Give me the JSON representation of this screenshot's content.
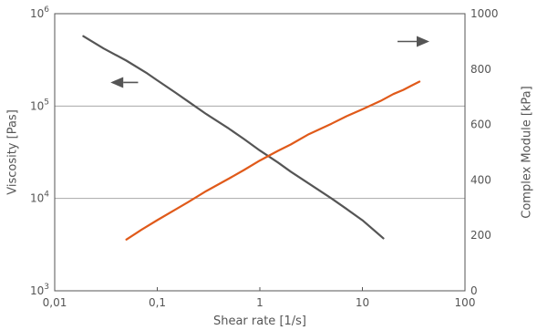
{
  "chart_data": {
    "type": "line",
    "title": "",
    "xlabel": "Shear rate [1/s]",
    "ylabel_left": "Viscosity [Pas]",
    "ylabel_right": "Complex Module [kPa]",
    "x_scale": "log",
    "y_left_scale": "log",
    "y_right_scale": "linear",
    "xlim": [
      0.01,
      100
    ],
    "ylim_left": [
      1000,
      1000000
    ],
    "ylim_right": [
      0,
      1000
    ],
    "x_ticks": [
      {
        "value": 0.01,
        "label": "0,01"
      },
      {
        "value": 0.1,
        "label": "0,1"
      },
      {
        "value": 1,
        "label": "1"
      },
      {
        "value": 10,
        "label": "10"
      },
      {
        "value": 100,
        "label": "100"
      }
    ],
    "y_left_ticks": [
      {
        "value": 1000,
        "base": "10",
        "exp": "3"
      },
      {
        "value": 10000,
        "base": "10",
        "exp": "4"
      },
      {
        "value": 100000,
        "base": "10",
        "exp": "5"
      },
      {
        "value": 1000000,
        "base": "10",
        "exp": "6"
      }
    ],
    "y_right_ticks": [
      {
        "value": 0,
        "label": "0"
      },
      {
        "value": 200,
        "label": "200"
      },
      {
        "value": 400,
        "label": "400"
      },
      {
        "value": 600,
        "label": "600"
      },
      {
        "value": 800,
        "label": "800"
      },
      {
        "value": 1000,
        "label": "1000"
      }
    ],
    "grid": "horizontal",
    "series": [
      {
        "axis": "left",
        "color": "#555555",
        "points": [
          [
            0.019,
            570000
          ],
          [
            0.03,
            420000
          ],
          [
            0.05,
            310000
          ],
          [
            0.08,
            225000
          ],
          [
            0.1,
            190000
          ],
          [
            0.15,
            140000
          ],
          [
            0.2,
            112000
          ],
          [
            0.3,
            82000
          ],
          [
            0.5,
            57000
          ],
          [
            0.7,
            44000
          ],
          [
            1.0,
            33000
          ],
          [
            1.5,
            24500
          ],
          [
            2.0,
            19500
          ],
          [
            3.0,
            14500
          ],
          [
            5.0,
            10000
          ],
          [
            7.0,
            7700
          ],
          [
            10.0,
            5800
          ],
          [
            16.0,
            3700
          ]
        ]
      },
      {
        "axis": "right",
        "color": "#e05a1a",
        "points": [
          [
            0.05,
            185
          ],
          [
            0.07,
            220
          ],
          [
            0.1,
            255
          ],
          [
            0.15,
            293
          ],
          [
            0.2,
            320
          ],
          [
            0.3,
            360
          ],
          [
            0.5,
            405
          ],
          [
            0.7,
            436
          ],
          [
            1.0,
            470
          ],
          [
            1.5,
            505
          ],
          [
            2.0,
            528
          ],
          [
            3.0,
            565
          ],
          [
            5.0,
            603
          ],
          [
            7.0,
            630
          ],
          [
            10.0,
            655
          ],
          [
            15.0,
            685
          ],
          [
            20.0,
            710
          ],
          [
            25.0,
            725
          ],
          [
            30.0,
            740
          ],
          [
            36.0,
            755
          ]
        ]
      }
    ],
    "annotations": [
      {
        "type": "arrow",
        "direction": "left",
        "points_to": "left-axis",
        "x_from": 0.065,
        "x_to": 0.035,
        "y_left": 180000
      },
      {
        "type": "arrow",
        "direction": "right",
        "points_to": "right-axis",
        "x_from": 22,
        "x_to": 45,
        "y_left": 500000
      }
    ]
  }
}
